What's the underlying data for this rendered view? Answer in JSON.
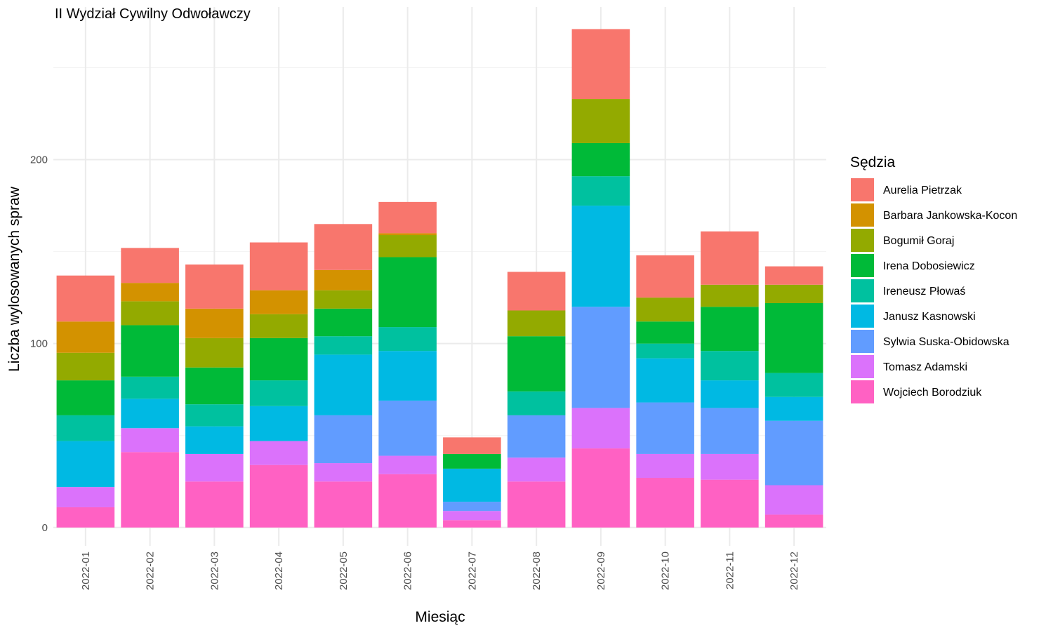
{
  "chart_data": {
    "type": "bar",
    "stacked": true,
    "title": "II Wydział Cywilny Odwoławczy",
    "xlabel": "Miesiąc",
    "ylabel": "Liczba wylosowanych spraw",
    "ylim": [
      -10,
      283
    ],
    "yticks": [
      0,
      100,
      200
    ],
    "grid": true,
    "legend": {
      "title": "Sędzia",
      "position": "right"
    },
    "categories": [
      "2022-01",
      "2022-02",
      "2022-03",
      "2022-04",
      "2022-05",
      "2022-06",
      "2022-07",
      "2022-08",
      "2022-09",
      "2022-10",
      "2022-11",
      "2022-12"
    ],
    "series": [
      {
        "name": "Wojciech Borodziuk",
        "color": "#FF61C3",
        "values": [
          11,
          41,
          25,
          34,
          25,
          29,
          4,
          25,
          43,
          27,
          26,
          7
        ]
      },
      {
        "name": "Tomasz Adamski",
        "color": "#DB72FB",
        "values": [
          11,
          13,
          15,
          13,
          10,
          10,
          5,
          13,
          22,
          13,
          14,
          16
        ]
      },
      {
        "name": "Sylwia Suska-Obidowska",
        "color": "#619CFF",
        "values": [
          0,
          0,
          0,
          0,
          26,
          30,
          5,
          23,
          55,
          28,
          25,
          35
        ]
      },
      {
        "name": "Janusz Kasnowski",
        "color": "#00B9E3",
        "values": [
          25,
          16,
          15,
          19,
          33,
          27,
          18,
          0,
          55,
          24,
          15,
          13
        ]
      },
      {
        "name": "Ireneusz Płowaś",
        "color": "#00C19F",
        "values": [
          14,
          12,
          12,
          14,
          10,
          13,
          0,
          13,
          16,
          8,
          16,
          13
        ]
      },
      {
        "name": "Irena Dobosiewicz",
        "color": "#00BA38",
        "values": [
          19,
          28,
          20,
          23,
          15,
          38,
          8,
          30,
          18,
          12,
          24,
          38
        ]
      },
      {
        "name": "Bogumił Goraj",
        "color": "#93AA00",
        "values": [
          15,
          13,
          16,
          13,
          10,
          12,
          0,
          14,
          24,
          13,
          12,
          10
        ]
      },
      {
        "name": "Barbara Jankowska-Kocon",
        "color": "#D39200",
        "values": [
          17,
          10,
          16,
          13,
          11,
          1,
          0,
          0,
          0,
          0,
          0,
          0
        ]
      },
      {
        "name": "Aurelia Pietrzak",
        "color": "#F8766D",
        "values": [
          25,
          19,
          24,
          26,
          25,
          17,
          9,
          21,
          38,
          23,
          29,
          10
        ]
      }
    ]
  }
}
